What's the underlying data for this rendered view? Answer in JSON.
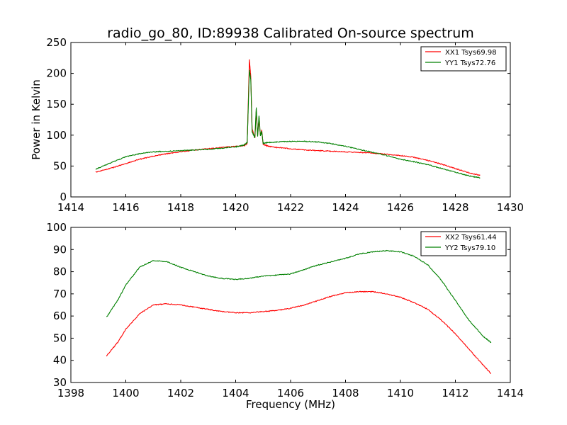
{
  "chart_data": [
    {
      "type": "line",
      "title": "radio_go_80, ID:89938 Calibrated On-source spectrum",
      "xlabel": "",
      "ylabel": "Power in Kelvin",
      "xlim": [
        1414,
        1430
      ],
      "ylim": [
        0,
        250
      ],
      "xticks": [
        "1414",
        "1416",
        "1418",
        "1420",
        "1422",
        "1424",
        "1426",
        "1428",
        "1430"
      ],
      "yticks": [
        "0",
        "50",
        "100",
        "150",
        "200",
        "250"
      ],
      "legend_position": "top-right",
      "grid": false,
      "series": [
        {
          "name": "XX1 Tsys69.98",
          "color": "#ff0000",
          "x": [
            1414.9,
            1415.5,
            1416.0,
            1416.5,
            1417.0,
            1417.5,
            1418.0,
            1418.5,
            1419.0,
            1419.5,
            1420.0,
            1420.3,
            1420.42,
            1420.5,
            1420.55,
            1420.6,
            1420.7,
            1420.75,
            1420.8,
            1420.85,
            1420.9,
            1420.95,
            1421.0,
            1421.2,
            1421.5,
            1422.0,
            1422.5,
            1423.0,
            1423.5,
            1424.0,
            1424.5,
            1425.0,
            1425.5,
            1426.0,
            1426.5,
            1427.0,
            1427.5,
            1428.0,
            1428.5,
            1428.9
          ],
          "values": [
            40,
            47,
            54,
            61,
            66,
            70,
            73,
            76,
            78,
            80,
            82,
            83,
            87,
            222,
            195,
            110,
            95,
            140,
            100,
            125,
            100,
            108,
            85,
            82,
            80,
            78,
            76,
            75,
            74,
            73,
            72,
            71,
            69,
            67,
            64,
            59,
            53,
            46,
            39,
            35
          ]
        },
        {
          "name": "YY1 Tsys72.76",
          "color": "#008000",
          "x": [
            1414.9,
            1415.5,
            1416.0,
            1416.5,
            1417.0,
            1417.5,
            1418.0,
            1418.5,
            1419.0,
            1419.5,
            1420.0,
            1420.3,
            1420.42,
            1420.5,
            1420.55,
            1420.6,
            1420.7,
            1420.75,
            1420.8,
            1420.85,
            1420.9,
            1420.95,
            1421.0,
            1421.2,
            1421.5,
            1422.0,
            1422.5,
            1423.0,
            1423.5,
            1424.0,
            1424.5,
            1425.0,
            1425.5,
            1426.0,
            1426.5,
            1427.0,
            1427.5,
            1428.0,
            1428.5,
            1428.9
          ],
          "values": [
            45,
            56,
            65,
            70,
            73,
            74,
            75,
            76,
            77,
            79,
            81,
            84,
            88,
            205,
            190,
            105,
            96,
            145,
            98,
            132,
            99,
            106,
            87,
            88,
            89,
            90,
            90,
            89,
            86,
            82,
            77,
            72,
            67,
            61,
            57,
            52,
            46,
            40,
            34,
            31
          ]
        }
      ]
    },
    {
      "type": "line",
      "title": "",
      "xlabel": "Frequency (MHz)",
      "ylabel": "",
      "xlim": [
        1398,
        1414
      ],
      "ylim": [
        30,
        100
      ],
      "xticks": [
        "1398",
        "1400",
        "1402",
        "1404",
        "1406",
        "1408",
        "1410",
        "1412",
        "1414"
      ],
      "yticks": [
        "30",
        "40",
        "50",
        "60",
        "70",
        "80",
        "90",
        "100"
      ],
      "legend_position": "top-right",
      "grid": false,
      "series": [
        {
          "name": "XX2 Tsys61.44",
          "color": "#ff0000",
          "x": [
            1399.3,
            1399.7,
            1400.0,
            1400.5,
            1401.0,
            1401.5,
            1402.0,
            1402.5,
            1403.0,
            1403.5,
            1404.0,
            1404.5,
            1405.0,
            1405.5,
            1406.0,
            1406.5,
            1407.0,
            1407.5,
            1408.0,
            1408.5,
            1409.0,
            1409.5,
            1410.0,
            1410.5,
            1411.0,
            1411.5,
            1412.0,
            1412.5,
            1413.0,
            1413.3
          ],
          "values": [
            42,
            48,
            54,
            61,
            65,
            65.5,
            65,
            64,
            63,
            62,
            61.5,
            61.5,
            62,
            62.5,
            63.5,
            65,
            67,
            69,
            70.5,
            71,
            71,
            70,
            68.5,
            66,
            63,
            58,
            52,
            45,
            38,
            34
          ]
        },
        {
          "name": "YY2 Tsys79.10",
          "color": "#008000",
          "x": [
            1399.3,
            1399.7,
            1400.0,
            1400.5,
            1401.0,
            1401.5,
            1402.0,
            1402.5,
            1403.0,
            1403.5,
            1404.0,
            1404.5,
            1405.0,
            1405.5,
            1406.0,
            1406.5,
            1407.0,
            1407.5,
            1408.0,
            1408.5,
            1409.0,
            1409.5,
            1410.0,
            1410.5,
            1411.0,
            1411.5,
            1412.0,
            1412.5,
            1413.0,
            1413.3
          ],
          "values": [
            59.5,
            67,
            74,
            82,
            85,
            84.5,
            82,
            80,
            78,
            77,
            76.5,
            77,
            78,
            78.5,
            79,
            81,
            83,
            84.5,
            86,
            88,
            89,
            89.5,
            89,
            87,
            83,
            76,
            67,
            58,
            51,
            48
          ]
        }
      ]
    }
  ]
}
